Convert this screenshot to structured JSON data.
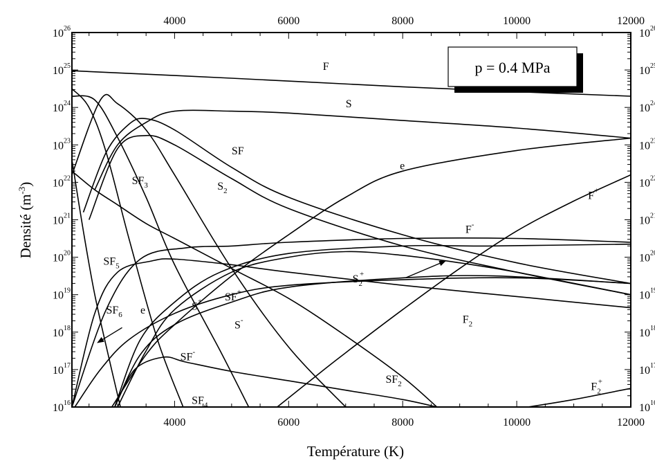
{
  "chart_data": {
    "type": "line",
    "title": "",
    "xlabel": "Température (K)",
    "ylabel": "Densité (m",
    "ylabel_exp": "-3",
    "ylabel_tail": ")",
    "x_range": [
      2200,
      12000
    ],
    "y_log_range": [
      16,
      26
    ],
    "x_ticks": [
      4000,
      6000,
      8000,
      10000,
      12000
    ],
    "x_tick_labels": [
      "4000",
      "6000",
      "8000",
      "10000",
      "12000"
    ],
    "y_ticks": [
      16,
      17,
      18,
      19,
      20,
      21,
      22,
      23,
      24,
      25,
      26
    ],
    "y_tick_labels": [
      "10",
      "10",
      "10",
      "10",
      "10",
      "10",
      "10",
      "10",
      "10",
      "10",
      "10"
    ],
    "y_tick_exponents": [
      "16",
      "17",
      "18",
      "19",
      "20",
      "21",
      "22",
      "23",
      "24",
      "25",
      "26"
    ],
    "scale": "log",
    "grid": false,
    "annotation": "p = 0.4 MPa",
    "series": [
      {
        "name": "F",
        "sup": "",
        "sub": "",
        "x": [
          2200,
          5000,
          8000,
          10000,
          12000
        ],
        "log10y": [
          24.98,
          24.78,
          24.55,
          24.42,
          24.3
        ]
      },
      {
        "name": "S",
        "sup": "",
        "sub": "",
        "x": [
          2600,
          3000,
          3500,
          4000,
          5000,
          6000,
          8000,
          10000,
          12000
        ],
        "log10y": [
          21.8,
          23.0,
          23.6,
          23.9,
          23.9,
          23.85,
          23.65,
          23.45,
          23.18
        ]
      },
      {
        "name": "e",
        "sup": "",
        "sub": "",
        "x": [
          2900,
          3500,
          4000,
          5000,
          6000,
          7000,
          8000,
          10000,
          12000
        ],
        "log10y": [
          16.0,
          17.4,
          18.2,
          19.5,
          20.6,
          21.6,
          22.3,
          22.85,
          23.18
        ]
      },
      {
        "name": "SF",
        "sup": "",
        "sub": "",
        "x": [
          2400,
          2800,
          3200,
          3500,
          4000,
          5000,
          6000,
          8000,
          10000,
          12000
        ],
        "log10y": [
          21.2,
          22.8,
          23.55,
          23.7,
          23.4,
          22.4,
          21.6,
          20.6,
          19.85,
          19.3
        ]
      },
      {
        "name": "S",
        "sup": "",
        "sub": "2",
        "x": [
          2500,
          3000,
          3500,
          4000,
          5000,
          6000,
          8000,
          10000,
          12000
        ],
        "log10y": [
          21.0,
          22.9,
          23.25,
          23.0,
          22.1,
          21.3,
          20.3,
          19.6,
          19.0
        ]
      },
      {
        "name": "SF",
        "sup": "",
        "sub": "3",
        "x": [
          2200,
          2700,
          3000,
          3500,
          4000,
          5000,
          6000,
          7000
        ],
        "log10y": [
          22.2,
          24.2,
          24.1,
          23.4,
          22.2,
          19.7,
          17.6,
          16.0
        ]
      },
      {
        "name": "SF",
        "sup": "",
        "sub": "5",
        "x": [
          2200,
          2500,
          2800,
          3200,
          3700,
          4150
        ],
        "log10y": [
          24.5,
          24.0,
          22.8,
          20.5,
          17.8,
          16.0
        ]
      },
      {
        "name": "SF",
        "sup": "",
        "sub": "6",
        "x": [
          2200,
          2400,
          2600,
          2850,
          3050
        ],
        "log10y": [
          22.6,
          20.7,
          19.0,
          17.3,
          16.0
        ]
      },
      {
        "name": "SF",
        "sup": "",
        "sub": "4",
        "x": [
          2200,
          2600,
          3000,
          3500,
          4000,
          4800,
          5300
        ],
        "log10y": [
          24.3,
          24.2,
          23.2,
          21.6,
          19.8,
          17.5,
          16.0
        ]
      },
      {
        "name": "SF",
        "sup": "",
        "sub": "2",
        "x": [
          2200,
          2600,
          3000,
          3500,
          4000,
          5000,
          6000,
          7000,
          8000,
          8600
        ],
        "log10y": [
          22.3,
          21.8,
          21.4,
          20.9,
          20.5,
          19.7,
          18.9,
          17.9,
          16.8,
          16.0
        ]
      },
      {
        "name": "F",
        "sup": "-",
        "sub": "",
        "x": [
          2200,
          2800,
          3400,
          4200,
          5000,
          6000,
          8000,
          10000,
          12000
        ],
        "log10y": [
          16.0,
          18.6,
          19.95,
          20.25,
          20.3,
          20.4,
          20.5,
          20.5,
          20.4
        ]
      },
      {
        "name": "S",
        "sup": "+",
        "sub": "",
        "x": [
          2950,
          3400,
          4000,
          4800,
          6000,
          8000,
          9500,
          12000
        ],
        "log10y": [
          16.0,
          17.8,
          18.8,
          19.6,
          20.1,
          20.3,
          20.3,
          20.35
        ]
      },
      {
        "name": "SF",
        "sup": "+",
        "sub": "",
        "x": [
          2950,
          3400,
          4000,
          5000,
          6000,
          8000,
          9600,
          12000
        ],
        "log10y": [
          16.0,
          17.4,
          18.2,
          18.8,
          19.2,
          19.45,
          19.5,
          19.3
        ]
      },
      {
        "name": "S",
        "sup": "-",
        "sub": "",
        "x": [
          2250,
          2700,
          3200,
          4000,
          5000,
          6000,
          8000,
          10000,
          12000
        ],
        "log10y": [
          16.0,
          17.0,
          17.8,
          18.5,
          19.0,
          19.25,
          19.4,
          19.45,
          19.3
        ]
      },
      {
        "name": "S",
        "sup": "+",
        "sub": "2",
        "x": [
          3000,
          3500,
          4000,
          5000,
          6000,
          7000,
          8000,
          9000,
          10000,
          12000
        ],
        "log10y": [
          16.0,
          17.5,
          18.6,
          19.6,
          20.0,
          20.15,
          20.05,
          19.85,
          19.6,
          19.0
        ]
      },
      {
        "name": "F",
        "sup": "",
        "sub": "2",
        "x": [
          2200,
          2600,
          3000,
          3600,
          4000,
          5000,
          6000,
          8000,
          10000,
          12000
        ],
        "log10y": [
          16.0,
          18.5,
          19.6,
          19.9,
          19.95,
          19.8,
          19.6,
          19.25,
          18.95,
          18.65
        ]
      },
      {
        "name": "F",
        "sup": "+",
        "sub": "",
        "x": [
          5800,
          6500,
          7000,
          8000,
          9000,
          10000,
          11000,
          12000
        ],
        "log10y": [
          16.0,
          16.85,
          17.45,
          18.6,
          19.7,
          20.7,
          21.5,
          22.2
        ]
      },
      {
        "name": "SF",
        "sup": "-",
        "sub": "",
        "x": [
          2950,
          3300,
          3800,
          4200,
          5000,
          6000,
          7000,
          8000,
          8600
        ],
        "log10y": [
          16.0,
          17.0,
          17.33,
          17.2,
          16.95,
          16.7,
          16.45,
          16.2,
          16.0
        ]
      },
      {
        "name": "F",
        "sup": "+",
        "sub": "2",
        "x": [
          10200,
          11000,
          12000
        ],
        "log10y": [
          16.0,
          16.2,
          16.5
        ]
      }
    ],
    "labels": [
      {
        "text": "F",
        "sup": "",
        "sub": "",
        "x": 6600,
        "log10y": 25.0
      },
      {
        "text": "S",
        "sup": "",
        "sub": "",
        "x": 7000,
        "log10y": 24.0
      },
      {
        "text": "e",
        "sup": "",
        "sub": "",
        "x": 7950,
        "log10y": 22.35
      },
      {
        "text": "SF",
        "sup": "",
        "sub": "",
        "x": 5000,
        "log10y": 22.75
      },
      {
        "text": "S",
        "sup": "",
        "sub": "2",
        "x": 4750,
        "log10y": 21.8
      },
      {
        "text": "SF",
        "sup": "",
        "sub": "3",
        "x": 3250,
        "log10y": 21.95
      },
      {
        "text": "SF",
        "sup": "",
        "sub": "5",
        "x": 2750,
        "log10y": 19.8
      },
      {
        "text": "SF",
        "sup": "",
        "sub": "6",
        "x": 2800,
        "log10y": 18.5
      },
      {
        "text": "SF",
        "sup": "",
        "sub": "4",
        "x": 4300,
        "log10y": 16.08
      },
      {
        "text": "SF",
        "sup": "",
        "sub": "2",
        "x": 7700,
        "log10y": 16.65
      },
      {
        "text": "F",
        "sup": "-",
        "sub": "",
        "x": 9100,
        "log10y": 20.65
      },
      {
        "text": "S",
        "sup": "+",
        "sub": "",
        "x": 4300,
        "log10y": 18.6
      },
      {
        "text": "SF",
        "sup": "+",
        "sub": "",
        "x": 4880,
        "log10y": 18.85
      },
      {
        "text": "S",
        "sup": "-",
        "sub": "",
        "x": 5050,
        "log10y": 18.1
      },
      {
        "text": "S",
        "sup": "+",
        "sub": "2",
        "x": 7120,
        "log10y": 19.33
      },
      {
        "text": "F",
        "sup": "",
        "sub": "2",
        "x": 9050,
        "log10y": 18.25
      },
      {
        "text": "F",
        "sup": "+",
        "sub": "",
        "x": 11250,
        "log10y": 21.55
      },
      {
        "text": "SF",
        "sup": "-",
        "sub": "",
        "x": 4100,
        "log10y": 17.25
      },
      {
        "text": "e",
        "sup": "",
        "sub": "",
        "x": 3400,
        "log10y": 18.5
      },
      {
        "text": "F",
        "sup": "+",
        "sub": "2",
        "x": 11300,
        "log10y": 16.45
      }
    ],
    "arrows": [
      {
        "from_x": 8050,
        "from_log10y": 19.45,
        "to_x": 8750,
        "to_log10y": 19.9
      },
      {
        "from_x": 3080,
        "from_log10y": 18.12,
        "to_x": 2650,
        "to_log10y": 17.72
      }
    ]
  }
}
